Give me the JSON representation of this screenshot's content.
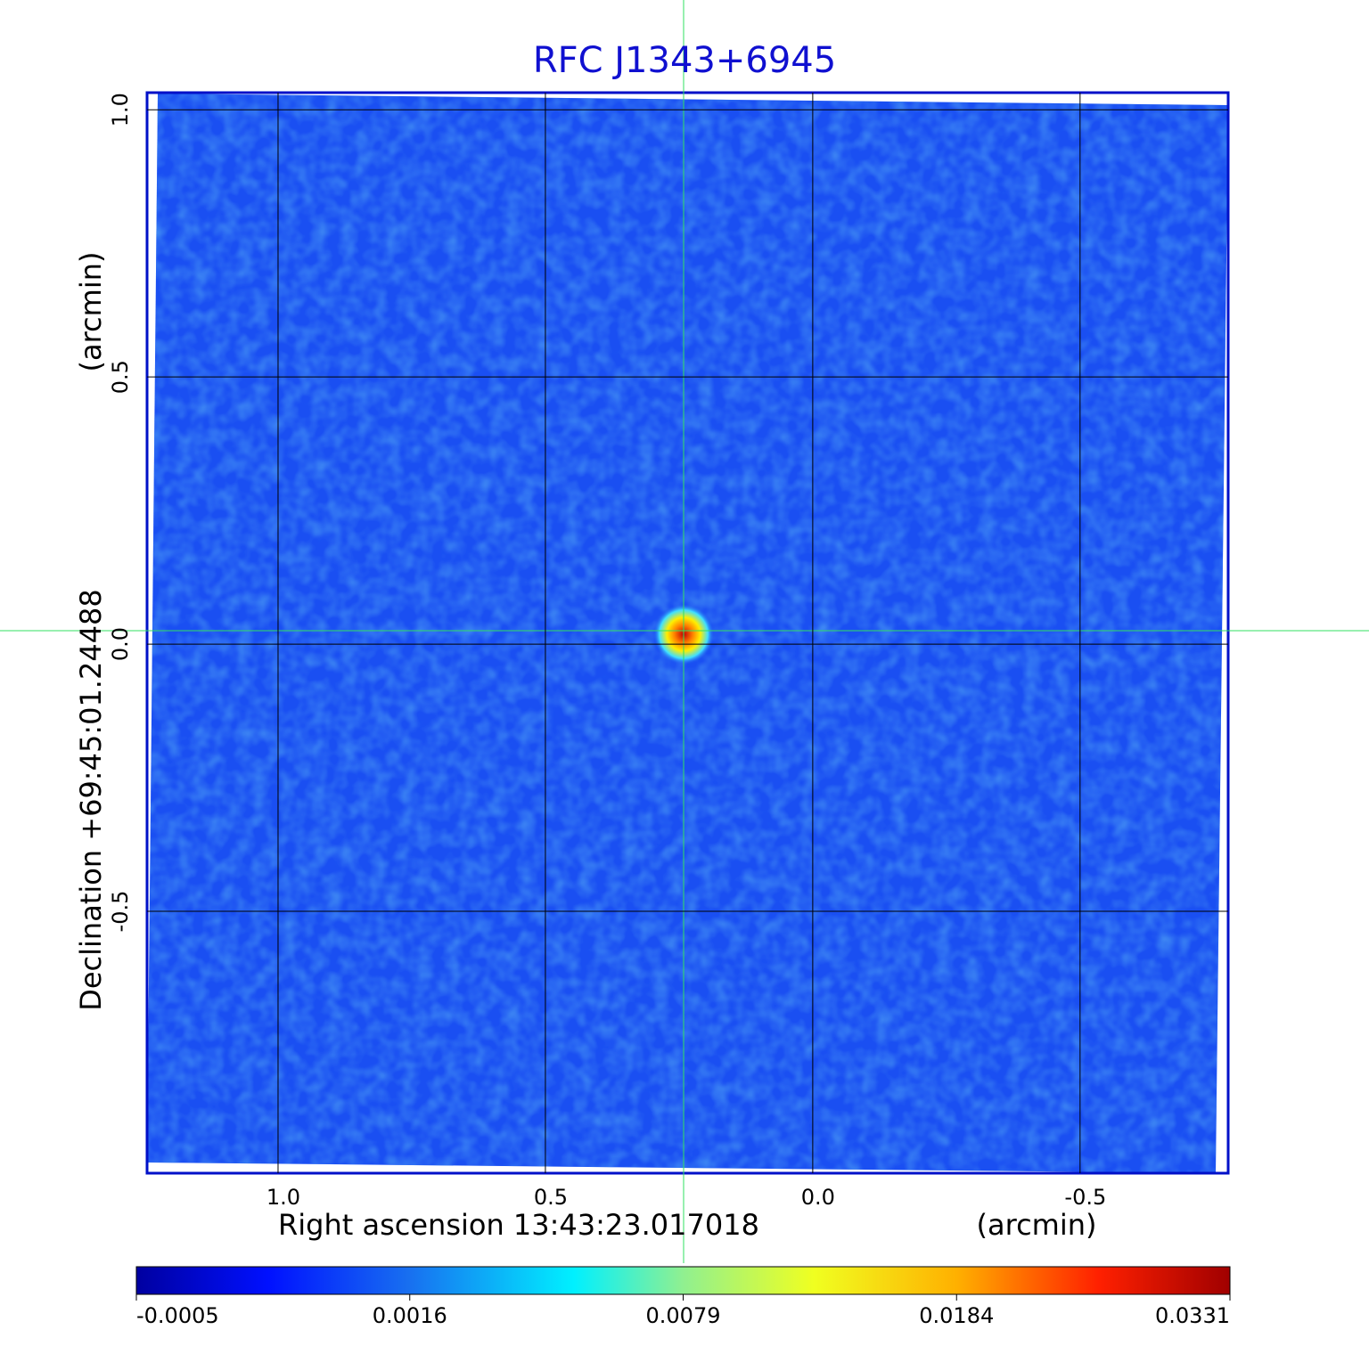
{
  "title": "RFC J1343+6945",
  "x_axis": {
    "label": "Right ascension  13:43:23.017018",
    "unit": "(arcmin)",
    "lim": [
      1.245,
      -0.777
    ],
    "ticks": [
      {
        "value": 1,
        "label": "1.0"
      },
      0.5,
      {
        "value": 0,
        "label": "0.0"
      },
      -0.5
    ]
  },
  "y_axis": {
    "label": "Declination  +69:45:01.24488",
    "unit": "(arcmin)",
    "lim": [
      -0.99,
      1.032
    ],
    "ticks": [
      {
        "value": 1,
        "label": "1.0"
      },
      0.5,
      {
        "value": 0,
        "label": "0.0"
      },
      -0.5
    ]
  },
  "colorbar": {
    "ticks": [
      -0.0005,
      0.0016,
      0.0079,
      0.0184,
      0.0331
    ]
  }
}
